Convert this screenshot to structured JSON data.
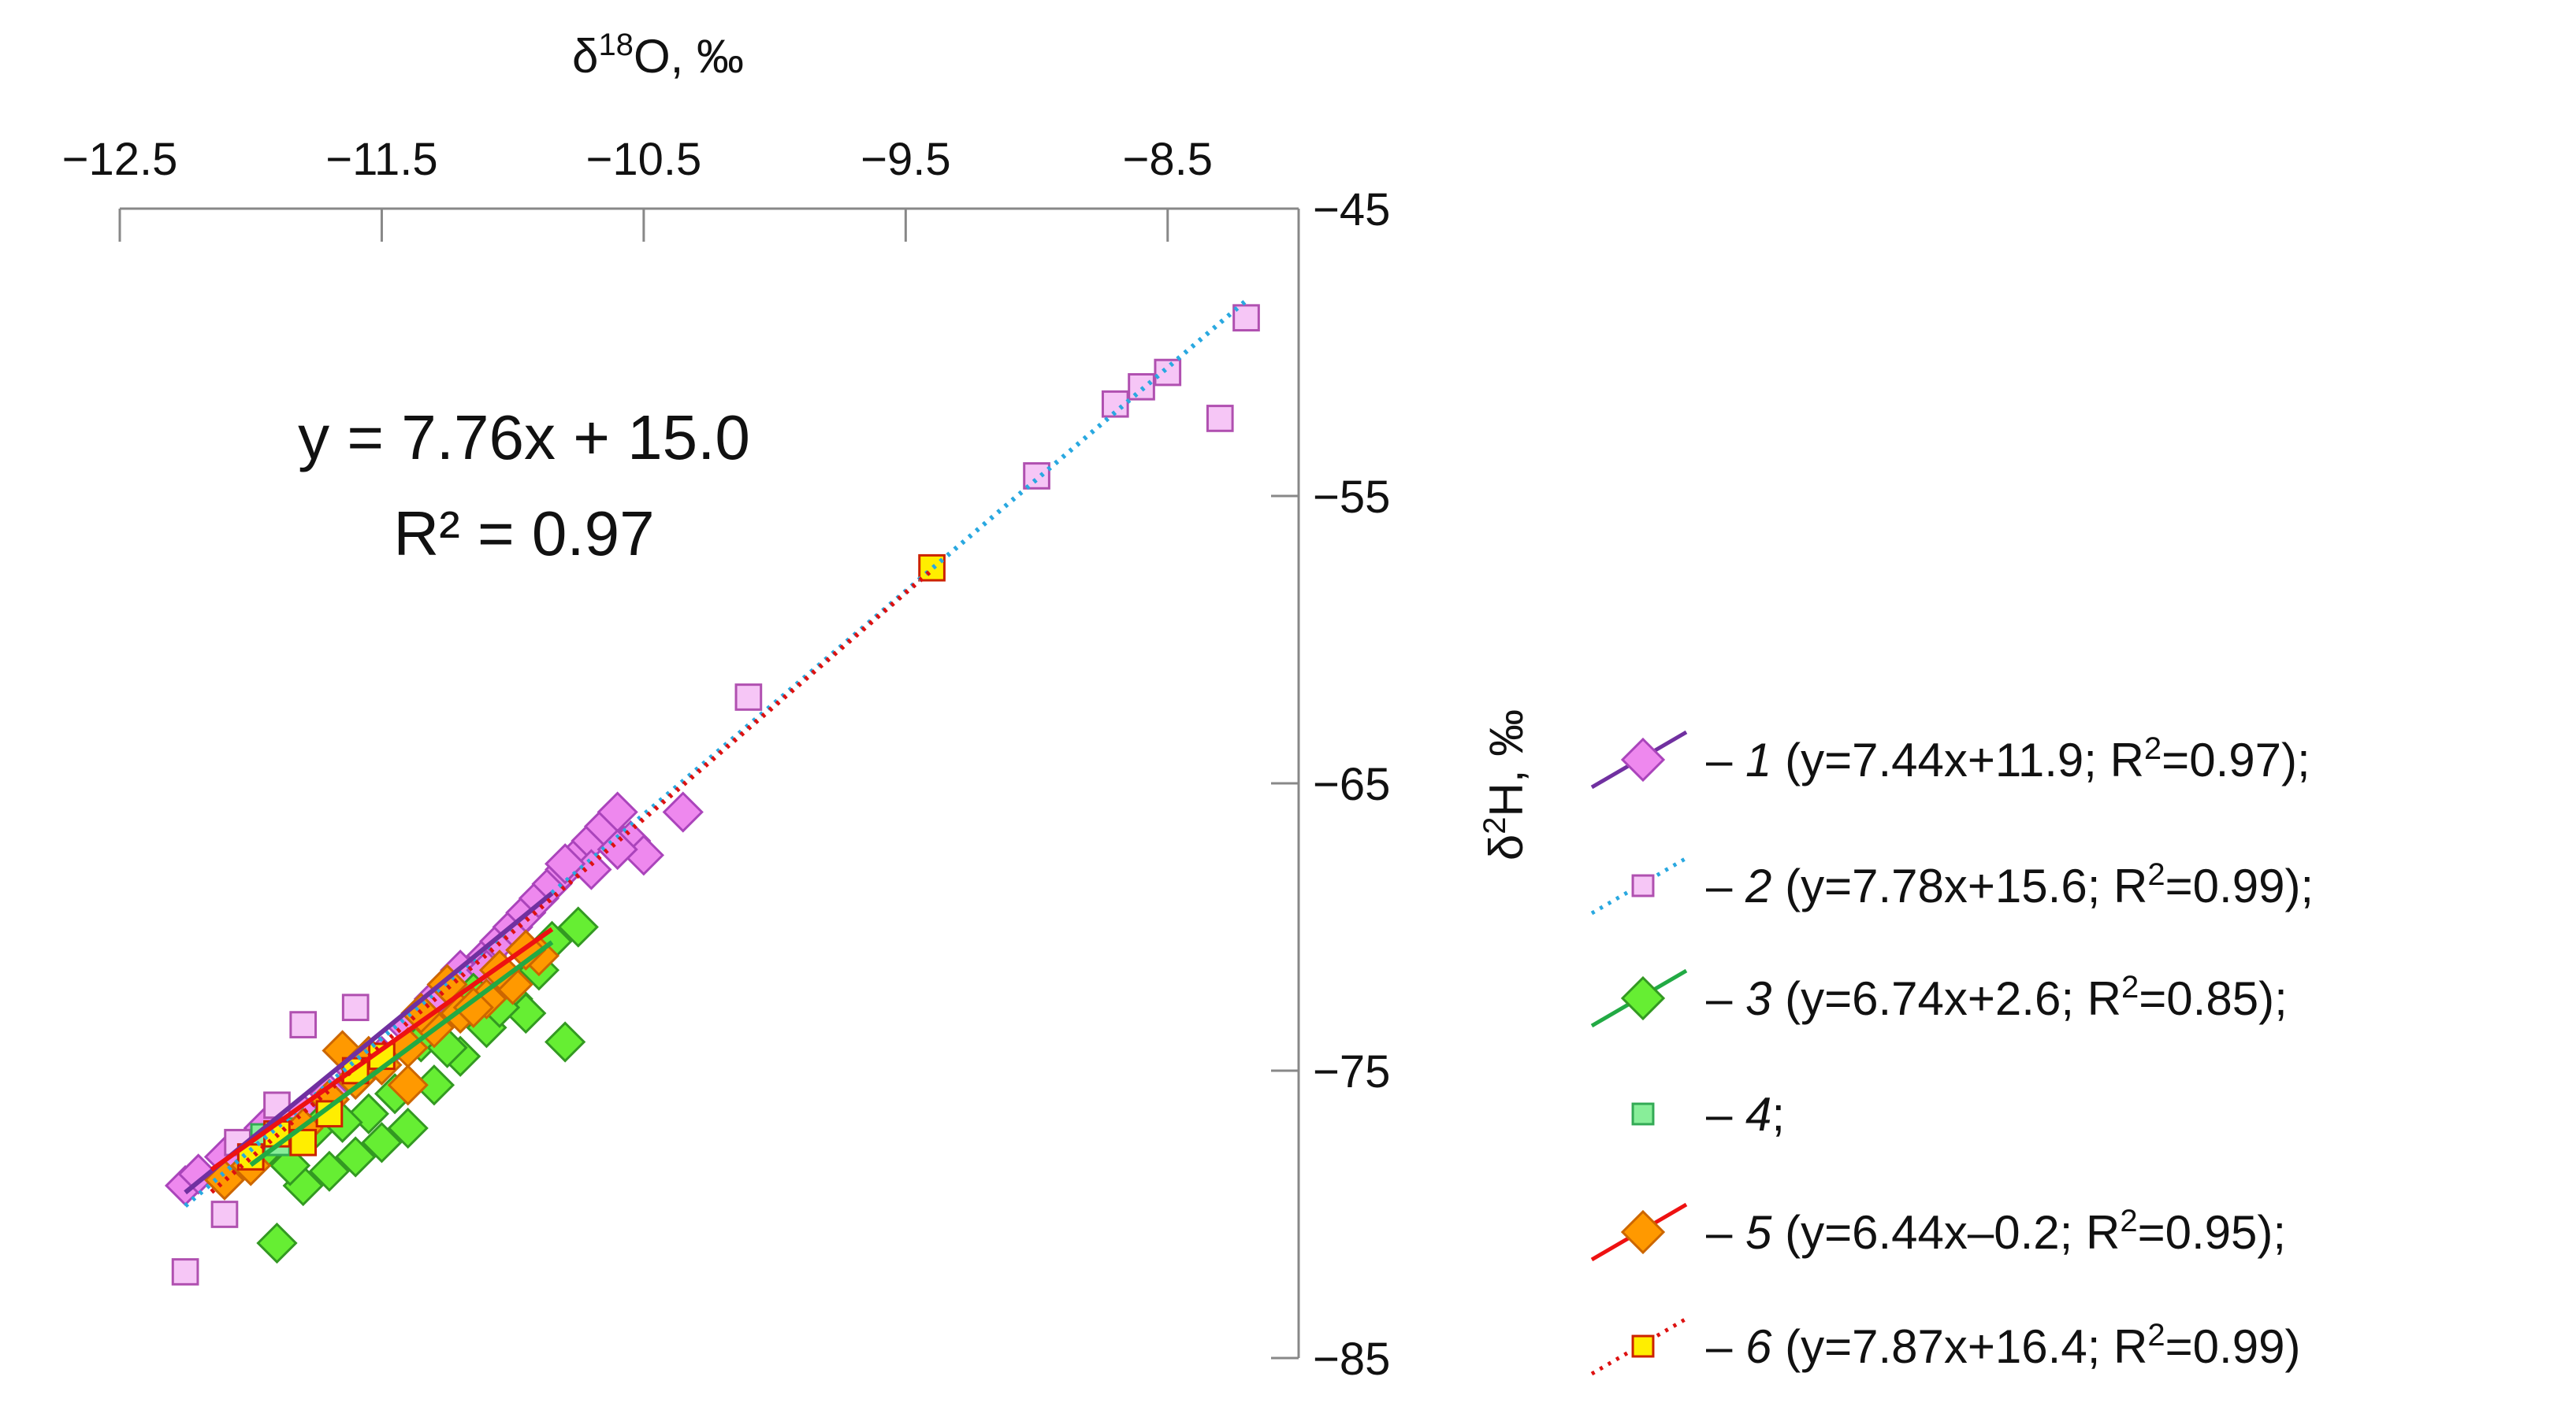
{
  "chart_data": {
    "type": "scatter",
    "xlabel": "δ18O, ‰",
    "xlabel_main": "δ",
    "xlabel_sup": "18",
    "xlabel_rest": "O, ‰",
    "ylabel": "δ2H, ‰",
    "ylabel_main": "δ",
    "ylabel_sup": "2",
    "ylabel_rest": "H, ‰",
    "xlim": [
      -12.5,
      -8.0
    ],
    "ylim": [
      -85,
      -45
    ],
    "x_axis_position": "top",
    "y_axis_position": "right",
    "x_ticks": [
      -12.5,
      -11.5,
      -10.5,
      -9.5,
      -8.5
    ],
    "x_tick_labels": [
      "−12.5",
      "−11.5",
      "−10.5",
      "−9.5",
      "−8.5"
    ],
    "y_ticks": [
      -45,
      -55,
      -65,
      -75,
      -85
    ],
    "y_tick_labels": [
      "−45",
      "−55",
      "−65",
      "−75",
      "−85"
    ],
    "grid": false,
    "legend_position": "right",
    "overall_equation": {
      "line1": "y = 7.76x + 15.0",
      "line2": "R² = 0.97",
      "slope": 7.76,
      "intercept": 15.0
    },
    "series": [
      {
        "name": "1",
        "legend_prefix": "– ",
        "legend_num": "1",
        "legend_equation": " (y=7.44x+11.9; R",
        "legend_r2": "=0.97);",
        "marker": "diamond",
        "fill": "#ee88ee",
        "stroke": "#aa44bb",
        "line_color": "#7030a0",
        "line_style": "solid",
        "slope": 7.44,
        "intercept": 11.9,
        "fit_range": [
          -12.25,
          -10.85
        ],
        "points": [
          [
            -12.25,
            -79.0
          ],
          [
            -12.2,
            -78.6
          ],
          [
            -12.1,
            -78.0
          ],
          [
            -12.0,
            -77.5
          ],
          [
            -11.95,
            -77.0
          ],
          [
            -11.8,
            -76.5
          ],
          [
            -11.7,
            -75.8
          ],
          [
            -11.6,
            -75.0
          ],
          [
            -11.5,
            -74.5
          ],
          [
            -11.4,
            -73.5
          ],
          [
            -11.3,
            -72.5
          ],
          [
            -11.25,
            -72.0
          ],
          [
            -11.2,
            -71.5
          ],
          [
            -11.1,
            -71.0
          ],
          [
            -11.05,
            -70.5
          ],
          [
            -11.0,
            -70.0
          ],
          [
            -10.95,
            -69.5
          ],
          [
            -10.9,
            -69.0
          ],
          [
            -10.85,
            -68.5
          ],
          [
            -10.8,
            -68.0
          ],
          [
            -10.75,
            -67.5
          ],
          [
            -10.7,
            -67.0
          ],
          [
            -10.65,
            -66.5
          ],
          [
            -10.6,
            -66.0
          ],
          [
            -10.7,
            -68.0
          ],
          [
            -10.55,
            -67.0
          ],
          [
            -10.5,
            -67.5
          ],
          [
            -10.6,
            -67.3
          ],
          [
            -10.35,
            -66.0
          ],
          [
            -10.8,
            -67.8
          ],
          [
            -11.1,
            -71.5
          ]
        ]
      },
      {
        "name": "2",
        "legend_prefix": "– ",
        "legend_num": "2",
        "legend_equation": " (y=7.78x+15.6; R",
        "legend_r2": "=0.99);",
        "marker": "square",
        "fill": "#f6c6f6",
        "stroke": "#b050b0",
        "line_color": "#29a8e0",
        "line_style": "dotted",
        "slope": 7.78,
        "intercept": 15.6,
        "fit_range": [
          -12.25,
          -8.2
        ],
        "points": [
          [
            -8.2,
            -48.8
          ],
          [
            -8.5,
            -50.7
          ],
          [
            -8.6,
            -51.2
          ],
          [
            -8.7,
            -51.8
          ],
          [
            -8.3,
            -52.3
          ],
          [
            -9.0,
            -54.3
          ],
          [
            -10.1,
            -62.0
          ],
          [
            -11.6,
            -72.8
          ],
          [
            -11.8,
            -73.4
          ],
          [
            -12.1,
            -80.0
          ],
          [
            -12.25,
            -82.0
          ],
          [
            -11.9,
            -76.2
          ],
          [
            -12.05,
            -77.5
          ]
        ]
      },
      {
        "name": "3",
        "legend_prefix": "– ",
        "legend_num": "3",
        "legend_equation": " (y=6.74x+2.6; R",
        "legend_r2": "=0.85);",
        "marker": "diamond",
        "fill": "#66ee33",
        "stroke": "#339922",
        "line_color": "#22aa44",
        "line_style": "solid",
        "slope": 6.74,
        "intercept": 2.6,
        "fit_range": [
          -12.0,
          -10.85
        ],
        "points": [
          [
            -11.9,
            -81.0
          ],
          [
            -11.8,
            -79.0
          ],
          [
            -11.7,
            -78.5
          ],
          [
            -11.6,
            -78.0
          ],
          [
            -11.5,
            -77.5
          ],
          [
            -11.4,
            -77.0
          ],
          [
            -11.3,
            -75.5
          ],
          [
            -11.2,
            -74.5
          ],
          [
            -11.1,
            -73.5
          ],
          [
            -11.0,
            -72.5
          ],
          [
            -10.9,
            -71.5
          ],
          [
            -10.85,
            -70.5
          ],
          [
            -10.8,
            -74.0
          ],
          [
            -10.95,
            -73.0
          ],
          [
            -11.15,
            -72.3
          ],
          [
            -11.35,
            -74.0
          ],
          [
            -11.55,
            -76.5
          ],
          [
            -11.75,
            -77.0
          ],
          [
            -11.45,
            -75.8
          ],
          [
            -11.25,
            -74.2
          ],
          [
            -11.85,
            -78.3
          ],
          [
            -10.75,
            -70.0
          ],
          [
            -11.05,
            -72.8
          ],
          [
            -11.65,
            -76.8
          ],
          [
            -11.95,
            -77.8
          ]
        ]
      },
      {
        "name": "4",
        "legend_prefix": "– ",
        "legend_num": "4",
        "legend_equation": ";",
        "legend_r2": "",
        "marker": "square",
        "fill": "#88ee99",
        "stroke": "#33aa55",
        "line_color": "",
        "line_style": "none",
        "slope": null,
        "intercept": null,
        "fit_range": null,
        "points": [
          [
            -11.95,
            -77.3
          ],
          [
            -11.9,
            -77.5
          ],
          [
            -11.85,
            -77.1
          ]
        ]
      },
      {
        "name": "5",
        "legend_prefix": "– ",
        "legend_num": "5",
        "legend_equation": " (y=6.44x–0.2; R",
        "legend_r2": "=0.95);",
        "marker": "diamond",
        "fill": "#ff9900",
        "stroke": "#cc6600",
        "line_color": "#ee1111",
        "line_style": "solid",
        "slope": 6.44,
        "intercept": -0.2,
        "fit_range": [
          -12.15,
          -10.85
        ],
        "points": [
          [
            -12.1,
            -78.8
          ],
          [
            -12.0,
            -78.3
          ],
          [
            -11.8,
            -77.0
          ],
          [
            -11.7,
            -76.0
          ],
          [
            -11.65,
            -74.3
          ],
          [
            -11.6,
            -75.3
          ],
          [
            -11.5,
            -74.8
          ],
          [
            -11.4,
            -74.2
          ],
          [
            -11.3,
            -73.5
          ],
          [
            -11.2,
            -73.0
          ],
          [
            -11.1,
            -72.5
          ],
          [
            -11.0,
            -72.0
          ],
          [
            -10.9,
            -71.0
          ],
          [
            -11.4,
            -75.5
          ],
          [
            -11.25,
            -72.0
          ],
          [
            -11.15,
            -72.8
          ],
          [
            -11.05,
            -71.5
          ],
          [
            -10.95,
            -70.8
          ],
          [
            -11.55,
            -74.5
          ],
          [
            -11.35,
            -73.0
          ]
        ]
      },
      {
        "name": "6",
        "legend_prefix": "– ",
        "legend_num": "6",
        "legend_equation": " (y=7.87x+16.4; R",
        "legend_r2": "=0.99)",
        "marker": "square",
        "fill": "#ffee00",
        "stroke": "#cc2200",
        "line_color": "#dd1111",
        "line_style": "dotted",
        "slope": 7.87,
        "intercept": 16.4,
        "fit_range": [
          -12.15,
          -9.4
        ],
        "points": [
          [
            -9.4,
            -57.5
          ],
          [
            -11.6,
            -75.0
          ],
          [
            -11.8,
            -77.5
          ],
          [
            -12.0,
            -78.0
          ],
          [
            -11.7,
            -76.5
          ],
          [
            -11.5,
            -74.5
          ],
          [
            -11.9,
            -77.2
          ]
        ]
      }
    ]
  }
}
